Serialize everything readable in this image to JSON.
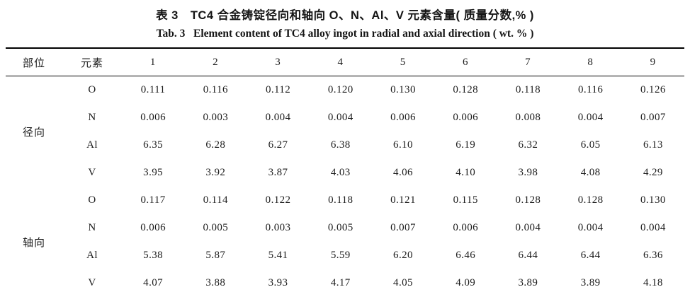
{
  "captions": {
    "zh": "表 3　TC4 合金铸锭径向和轴向 O、N、Al、V 元素含量( 质量分数,% )",
    "en": "Tab. 3   Element content of TC4 alloy ingot in radial and axial direction ( wt. % )"
  },
  "table": {
    "columns": [
      "部位",
      "元素",
      "1",
      "2",
      "3",
      "4",
      "5",
      "6",
      "7",
      "8",
      "9"
    ],
    "groups": [
      {
        "label": "径向",
        "rows": [
          {
            "element": "O",
            "values": [
              "0.111",
              "0.116",
              "0.112",
              "0.120",
              "0.130",
              "0.128",
              "0.118",
              "0.116",
              "0.126"
            ]
          },
          {
            "element": "N",
            "values": [
              "0.006",
              "0.003",
              "0.004",
              "0.004",
              "0.006",
              "0.006",
              "0.008",
              "0.004",
              "0.007"
            ]
          },
          {
            "element": "Al",
            "values": [
              "6.35",
              "6.28",
              "6.27",
              "6.38",
              "6.10",
              "6.19",
              "6.32",
              "6.05",
              "6.13"
            ]
          },
          {
            "element": "V",
            "values": [
              "3.95",
              "3.92",
              "3.87",
              "4.03",
              "4.06",
              "4.10",
              "3.98",
              "4.08",
              "4.29"
            ]
          }
        ]
      },
      {
        "label": "轴向",
        "rows": [
          {
            "element": "O",
            "values": [
              "0.117",
              "0.114",
              "0.122",
              "0.118",
              "0.121",
              "0.115",
              "0.128",
              "0.128",
              "0.130"
            ]
          },
          {
            "element": "N",
            "values": [
              "0.006",
              "0.005",
              "0.003",
              "0.005",
              "0.007",
              "0.006",
              "0.004",
              "0.004",
              "0.004"
            ]
          },
          {
            "element": "Al",
            "values": [
              "5.38",
              "5.87",
              "5.41",
              "5.59",
              "6.20",
              "6.46",
              "6.44",
              "6.44",
              "6.36"
            ]
          },
          {
            "element": "V",
            "values": [
              "4.07",
              "3.88",
              "3.93",
              "4.17",
              "4.05",
              "4.09",
              "3.89",
              "3.89",
              "4.18"
            ]
          }
        ]
      }
    ]
  }
}
